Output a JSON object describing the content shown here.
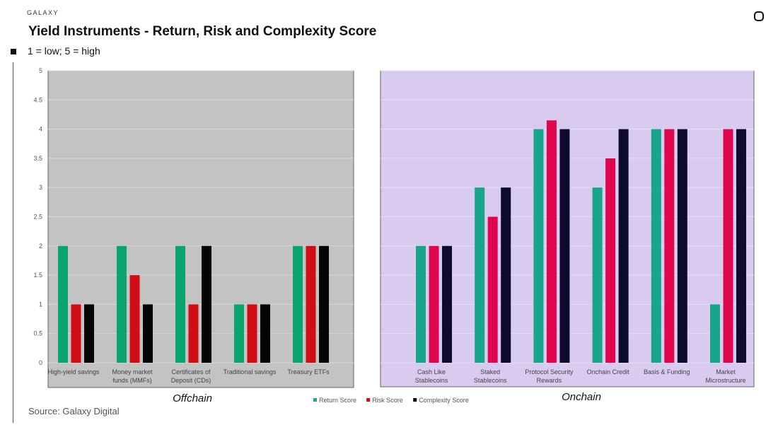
{
  "header": {
    "brand": "GALAXY",
    "title": "Yield Instruments - Return, Risk and Complexity Score",
    "subtitle": "1 = low; 5 = high"
  },
  "source": "Source: Galaxy Digital",
  "chart_data": [
    {
      "type": "bar",
      "panel": "Offchain",
      "ylim": [
        0,
        5
      ],
      "yticks": [
        "0",
        "0.5",
        "1",
        "1.5",
        "2",
        "2.5",
        "3",
        "3.5",
        "4",
        "4.5",
        "5"
      ],
      "grid": true,
      "background": "#c3c3c3",
      "categories": [
        [
          "High-yield savings"
        ],
        [
          "Money market",
          "funds (MMFs)"
        ],
        [
          "Certificates of",
          "Deposit (CDs)"
        ],
        [
          "Traditional savings"
        ],
        [
          "Treasury ETFs"
        ]
      ],
      "series": [
        {
          "name": "Return Score",
          "color": "#0aa56e",
          "values": [
            2,
            2,
            2,
            1,
            2
          ]
        },
        {
          "name": "Risk Score",
          "color": "#d00d14",
          "values": [
            1,
            1.5,
            1,
            1,
            2
          ]
        },
        {
          "name": "Complexity Score",
          "color": "#050505",
          "values": [
            1,
            1,
            2,
            1,
            2
          ]
        }
      ]
    },
    {
      "type": "bar",
      "panel": "Onchain",
      "ylim": [
        0,
        5
      ],
      "grid": true,
      "background": "#d9cbef",
      "categories": [
        [
          "Cash Like",
          "Stablecoins"
        ],
        [
          "Staked",
          "Stablecoins"
        ],
        [
          "Protocol Security",
          "Rewards"
        ],
        [
          "Onchain Credit"
        ],
        [
          "Basis & Funding"
        ],
        [
          "Market",
          "Microstructure"
        ]
      ],
      "series": [
        {
          "name": "Return Score",
          "color": "#17a58b",
          "values": [
            2,
            3,
            4,
            3,
            4,
            1
          ]
        },
        {
          "name": "Risk Score",
          "color": "#e0064e",
          "values": [
            2,
            2.5,
            4.15,
            3.5,
            4,
            4
          ]
        },
        {
          "name": "Complexity Score",
          "color": "#0e0a2e",
          "values": [
            2,
            3,
            4,
            4,
            4,
            4
          ]
        }
      ]
    }
  ],
  "legend": {
    "position": "bottom",
    "items": [
      {
        "label": "Return Score",
        "color": "#1aa88e"
      },
      {
        "label": "Risk Score",
        "color": "#d00d14"
      },
      {
        "label": "Complexity Score",
        "color": "#050505"
      }
    ]
  }
}
